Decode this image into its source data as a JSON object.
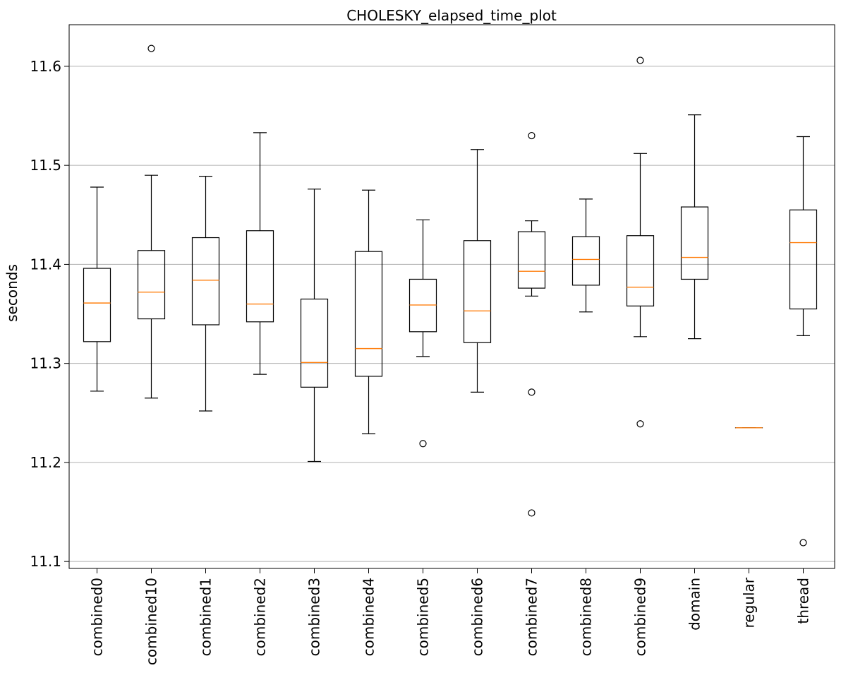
{
  "chart_data": {
    "type": "boxplot",
    "title": "CHOLESKY_elapsed_time_plot",
    "xlabel": "",
    "ylabel": "seconds",
    "ylim": [
      11.093,
      11.642
    ],
    "yticks": [
      11.1,
      11.2,
      11.3,
      11.4,
      11.5,
      11.6
    ],
    "ytick_labels": [
      "11.1",
      "11.2",
      "11.3",
      "11.4",
      "11.5",
      "11.6"
    ],
    "grid": "y",
    "box_color": "#000000",
    "median_color": "#ff7f0e",
    "grid_color": "#b0b0b0",
    "categories": [
      "combined0",
      "combined10",
      "combined1",
      "combined2",
      "combined3",
      "combined4",
      "combined5",
      "combined6",
      "combined7",
      "combined8",
      "combined9",
      "domain",
      "regular",
      "thread"
    ],
    "boxes": [
      {
        "label": "combined0",
        "whislo": 11.272,
        "q1": 11.322,
        "med": 11.361,
        "q3": 11.396,
        "whishi": 11.478,
        "fliers": []
      },
      {
        "label": "combined10",
        "whislo": 11.265,
        "q1": 11.345,
        "med": 11.372,
        "q3": 11.414,
        "whishi": 11.49,
        "fliers": [
          11.618
        ]
      },
      {
        "label": "combined1",
        "whislo": 11.252,
        "q1": 11.339,
        "med": 11.384,
        "q3": 11.427,
        "whishi": 11.489,
        "fliers": []
      },
      {
        "label": "combined2",
        "whislo": 11.289,
        "q1": 11.342,
        "med": 11.36,
        "q3": 11.434,
        "whishi": 11.533,
        "fliers": []
      },
      {
        "label": "combined3",
        "whislo": 11.201,
        "q1": 11.276,
        "med": 11.301,
        "q3": 11.365,
        "whishi": 11.476,
        "fliers": []
      },
      {
        "label": "combined4",
        "whislo": 11.229,
        "q1": 11.287,
        "med": 11.315,
        "q3": 11.413,
        "whishi": 11.475,
        "fliers": []
      },
      {
        "label": "combined5",
        "whislo": 11.307,
        "q1": 11.332,
        "med": 11.359,
        "q3": 11.385,
        "whishi": 11.445,
        "fliers": [
          11.219
        ]
      },
      {
        "label": "combined6",
        "whislo": 11.271,
        "q1": 11.321,
        "med": 11.353,
        "q3": 11.424,
        "whishi": 11.516,
        "fliers": []
      },
      {
        "label": "combined7",
        "whislo": 11.368,
        "q1": 11.376,
        "med": 11.393,
        "q3": 11.433,
        "whishi": 11.444,
        "fliers": [
          11.53,
          11.271,
          11.149
        ]
      },
      {
        "label": "combined8",
        "whislo": 11.352,
        "q1": 11.379,
        "med": 11.405,
        "q3": 11.428,
        "whishi": 11.466,
        "fliers": []
      },
      {
        "label": "combined9",
        "whislo": 11.327,
        "q1": 11.358,
        "med": 11.377,
        "q3": 11.429,
        "whishi": 11.512,
        "fliers": [
          11.606,
          11.239
        ]
      },
      {
        "label": "domain",
        "whislo": 11.325,
        "q1": 11.385,
        "med": 11.407,
        "q3": 11.458,
        "whishi": 11.551,
        "fliers": []
      },
      {
        "label": "regular",
        "whislo": 11.235,
        "q1": 11.235,
        "med": 11.235,
        "q3": 11.235,
        "whishi": 11.235,
        "fliers": []
      },
      {
        "label": "thread",
        "whislo": 11.328,
        "q1": 11.355,
        "med": 11.422,
        "q3": 11.455,
        "whishi": 11.529,
        "fliers": [
          11.119
        ]
      }
    ]
  }
}
